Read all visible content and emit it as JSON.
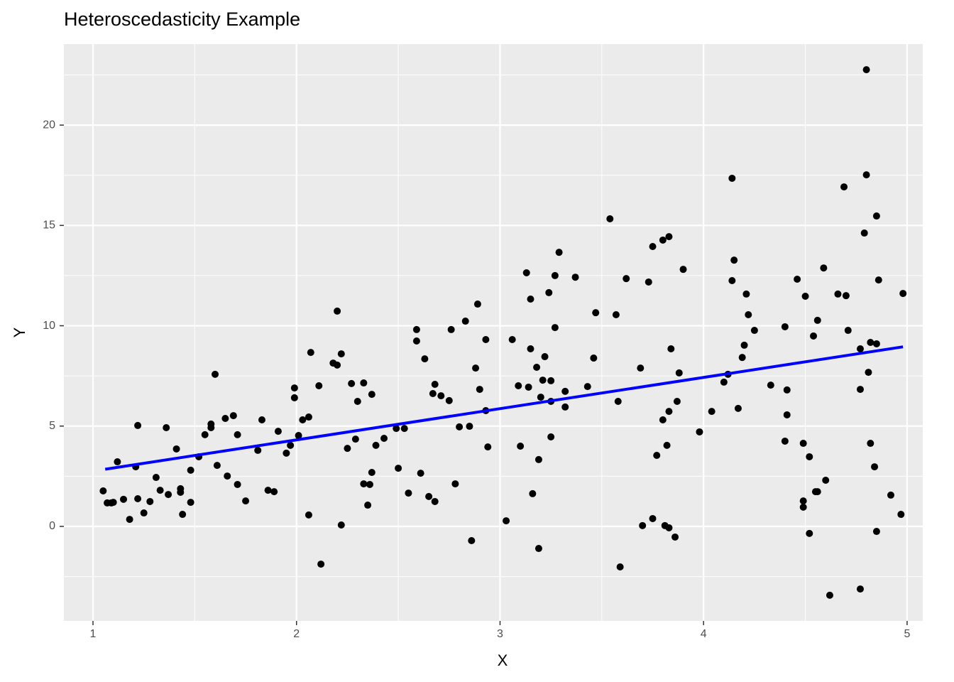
{
  "chart_data": {
    "type": "scatter",
    "title": "Heteroscedasticity Example",
    "x_label": "X",
    "y_label": "Y",
    "x": [
      1.05,
      1.07,
      1.09,
      1.1,
      1.12,
      1.15,
      1.18,
      1.21,
      1.22,
      1.22,
      1.25,
      1.28,
      1.31,
      1.33,
      1.36,
      1.37,
      1.41,
      1.43,
      1.43,
      1.44,
      1.48,
      1.48,
      1.52,
      1.55,
      1.58,
      1.58,
      1.6,
      1.61,
      1.65,
      1.66,
      1.69,
      1.71,
      1.71,
      1.75,
      1.81,
      1.83,
      1.86,
      1.89,
      1.91,
      1.95,
      1.97,
      1.99,
      1.99,
      2.01,
      2.03,
      2.06,
      2.06,
      2.07,
      2.11,
      2.12,
      2.18,
      2.2,
      2.2,
      2.22,
      2.22,
      2.25,
      2.27,
      2.29,
      2.3,
      2.33,
      2.33,
      2.35,
      2.36,
      2.37,
      2.37,
      2.39,
      2.43,
      2.49,
      2.5,
      2.53,
      2.55,
      2.59,
      2.59,
      2.61,
      2.63,
      2.65,
      2.67,
      2.68,
      2.68,
      2.71,
      2.75,
      2.76,
      2.78,
      2.8,
      2.83,
      2.85,
      2.86,
      2.88,
      2.89,
      2.9,
      2.93,
      2.93,
      2.94,
      3.03,
      3.06,
      3.09,
      3.1,
      3.13,
      3.14,
      3.15,
      3.15,
      3.16,
      3.18,
      3.19,
      3.19,
      3.2,
      3.21,
      3.22,
      3.24,
      3.25,
      3.25,
      3.25,
      3.27,
      3.27,
      3.29,
      3.32,
      3.32,
      3.37,
      3.43,
      3.46,
      3.47,
      3.54,
      3.57,
      3.58,
      3.59,
      3.62,
      3.69,
      3.7,
      3.73,
      3.75,
      3.75,
      3.77,
      3.8,
      3.8,
      3.81,
      3.82,
      3.83,
      3.83,
      3.83,
      3.84,
      3.86,
      3.87,
      3.88,
      3.9,
      3.98,
      4.04,
      4.1,
      4.12,
      4.14,
      4.14,
      4.15,
      4.17,
      4.19,
      4.2,
      4.21,
      4.22,
      4.25,
      4.33,
      4.4,
      4.4,
      4.41,
      4.41,
      4.46,
      4.49,
      4.49,
      4.49,
      4.5,
      4.52,
      4.52,
      4.54,
      4.55,
      4.56,
      4.56,
      4.59,
      4.6,
      4.62,
      4.66,
      4.69,
      4.7,
      4.71,
      4.77,
      4.77,
      4.77,
      4.79,
      4.8,
      4.8,
      4.81,
      4.82,
      4.82,
      4.84,
      4.85,
      4.85,
      4.85,
      4.86,
      4.92,
      4.97,
      4.98
    ],
    "values": [
      1.77,
      1.17,
      1.17,
      1.2,
      3.22,
      1.35,
      0.35,
      2.97,
      5.03,
      1.38,
      0.67,
      1.24,
      2.44,
      1.8,
      4.92,
      1.59,
      3.86,
      1.7,
      1.88,
      0.6,
      2.8,
      1.2,
      3.47,
      4.57,
      5.1,
      4.92,
      7.58,
      3.04,
      5.38,
      2.51,
      5.52,
      4.57,
      2.09,
      1.27,
      3.79,
      5.31,
      1.8,
      1.73,
      4.74,
      3.65,
      4.04,
      6.9,
      6.41,
      4.53,
      5.31,
      0.57,
      5.45,
      8.67,
      7.01,
      -1.88,
      8.14,
      10.73,
      8.04,
      0.07,
      8.6,
      3.89,
      7.12,
      4.35,
      6.23,
      7.15,
      2.12,
      1.06,
      2.09,
      6.58,
      2.69,
      4.04,
      4.39,
      4.88,
      2.9,
      4.88,
      1.66,
      9.81,
      9.24,
      2.65,
      8.35,
      1.49,
      6.62,
      1.24,
      7.08,
      6.51,
      6.27,
      9.81,
      2.12,
      4.96,
      10.23,
      4.99,
      -0.71,
      7.89,
      11.08,
      6.83,
      9.31,
      5.77,
      3.96,
      0.28,
      9.31,
      7.01,
      4.0,
      12.64,
      6.94,
      8.85,
      11.33,
      1.63,
      7.93,
      3.33,
      -1.1,
      6.44,
      7.29,
      8.46,
      11.65,
      6.23,
      7.26,
      4.46,
      9.91,
      12.5,
      13.66,
      6.73,
      5.95,
      12.42,
      6.97,
      8.39,
      10.65,
      15.33,
      10.55,
      6.23,
      -2.02,
      12.35,
      7.89,
      0.04,
      12.18,
      0.39,
      13.95,
      3.54,
      5.31,
      14.27,
      0.04,
      4.04,
      14.44,
      -0.07,
      5.73,
      8.85,
      -0.53,
      6.23,
      7.65,
      12.81,
      4.71,
      5.73,
      7.19,
      7.58,
      17.35,
      12.25,
      13.27,
      5.88,
      8.42,
      9.03,
      11.58,
      10.55,
      9.77,
      7.04,
      4.25,
      9.95,
      6.8,
      5.56,
      12.32,
      4.14,
      1.27,
      0.96,
      11.47,
      3.47,
      -0.35,
      9.49,
      1.73,
      1.73,
      10.27,
      12.88,
      2.3,
      -3.43,
      11.58,
      16.92,
      11.5,
      9.77,
      -3.12,
      6.83,
      8.85,
      14.62,
      17.52,
      22.76,
      7.68,
      4.14,
      9.17,
      2.97,
      9.1,
      -0.25,
      15.47,
      12.28,
      1.56,
      0.6,
      11.61
    ],
    "color": "#000000",
    "fit_line": {
      "x": [
        1.06,
        4.98
      ],
      "values": [
        2.85,
        8.95
      ],
      "color": "#0000ff"
    },
    "xlim": [
      0.857,
      5.077
    ],
    "ylim": [
      -4.71,
      24.04
    ],
    "xticks": [
      1,
      2,
      3,
      4,
      5
    ],
    "yticks": [
      0,
      5,
      10,
      15,
      20
    ],
    "grid": true
  }
}
